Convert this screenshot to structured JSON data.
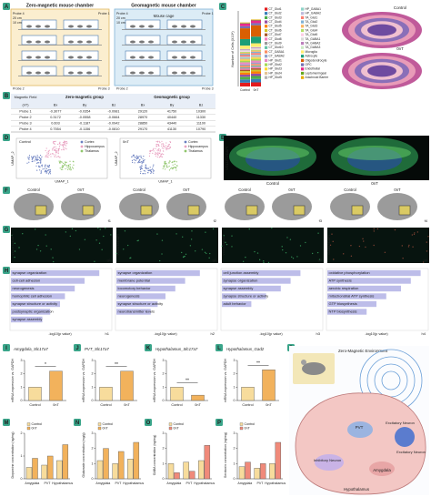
{
  "letters": [
    "A",
    "B",
    "C",
    "D",
    "E",
    "F",
    "G",
    "H",
    "I",
    "J",
    "K",
    "L",
    "M",
    "N",
    "O",
    "P",
    "Q"
  ],
  "a": {
    "left_title": "Zero-magnetic mouse chamber",
    "right_title": "Geomagnetic mouse chamber",
    "cage": "Mouse cage",
    "dims": [
      "20 cm",
      "10 cm",
      "20 cm",
      "10 cm"
    ],
    "probes": [
      "Probe 1",
      "Probe 2",
      "Probe 3",
      "Probe 4",
      "Probe 1",
      "Probe 2",
      "Probe 3",
      "Probe 4"
    ]
  },
  "b": {
    "header": [
      "Magnetic Field",
      "Zero-magnetic group",
      "Geomagnetic group"
    ],
    "sub": [
      "(nT)",
      "Bx",
      "By",
      "Bz",
      "Bx",
      "By",
      "Bz"
    ],
    "rows": [
      [
        "Probe 1",
        "-0.3077",
        "-0.0354",
        "-0.0981",
        "29120",
        "41750",
        "10300"
      ],
      [
        "Probe 2",
        "0.3172",
        "-0.0558",
        "-0.0664",
        "28970",
        "40440",
        "11330"
      ],
      [
        "Probe 3",
        "0.603",
        "-0.1187",
        "-0.0942",
        "28850",
        "43440",
        "11100"
      ],
      [
        "Probe 4",
        "0.7554",
        "-0.1156",
        "-0.0810",
        "29170",
        "41130",
        "10790"
      ]
    ]
  },
  "c": {
    "ylabel": "Number of Cells (X10⁴)",
    "categories": [
      "Control",
      "0nT"
    ],
    "ylim": [
      0,
      7
    ],
    "brains": [
      "Control",
      "0nT"
    ],
    "series": [
      {
        "name": "CT_Glut1",
        "color": "#e41a1c",
        "values": [
          0.35,
          0.38
        ]
      },
      {
        "name": "CT_Glut2",
        "color": "#377eb8",
        "values": [
          0.3,
          0.32
        ]
      },
      {
        "name": "CT_Glut3",
        "color": "#4daf4a",
        "values": [
          0.25,
          0.27
        ]
      },
      {
        "name": "CT_Glut4",
        "color": "#984ea3",
        "values": [
          0.2,
          0.22
        ]
      },
      {
        "name": "CT_Glut5",
        "color": "#ff7f00",
        "values": [
          0.18,
          0.2
        ]
      },
      {
        "name": "CT_Glut6",
        "color": "#d4c42a",
        "values": [
          0.15,
          0.16
        ]
      },
      {
        "name": "CT_Glut7",
        "color": "#a65628",
        "values": [
          0.12,
          0.13
        ]
      },
      {
        "name": "CT_Glut8",
        "color": "#f781bf",
        "values": [
          0.1,
          0.11
        ]
      },
      {
        "name": "CT_Glut9",
        "color": "#999999",
        "values": [
          0.08,
          0.09
        ]
      },
      {
        "name": "CT_Glut10",
        "color": "#66c2a5",
        "values": [
          0.06,
          0.07
        ]
      },
      {
        "name": "CT_GABA1",
        "color": "#fc8d62",
        "values": [
          0.15,
          0.14
        ]
      },
      {
        "name": "CT_GABA2",
        "color": "#8da0cb",
        "values": [
          0.1,
          0.1
        ]
      },
      {
        "name": "HP_Glut1",
        "color": "#e78ac3",
        "values": [
          0.2,
          0.21
        ]
      },
      {
        "name": "HP_Glut2",
        "color": "#a6d854",
        "values": [
          0.15,
          0.16
        ]
      },
      {
        "name": "HP_Glut3",
        "color": "#ffd92f",
        "values": [
          0.1,
          0.11
        ]
      },
      {
        "name": "HP_Glut4",
        "color": "#e5c494",
        "values": [
          0.08,
          0.08
        ]
      },
      {
        "name": "HP_Glut5",
        "color": "#b3b3b3",
        "values": [
          0.06,
          0.06
        ]
      },
      {
        "name": "HP_GABA1",
        "color": "#8dd3c7",
        "values": [
          0.08,
          0.08
        ]
      },
      {
        "name": "HP_GABA2",
        "color": "#bebada",
        "values": [
          0.05,
          0.05
        ]
      },
      {
        "name": "TA_Glut1",
        "color": "#fb8072",
        "values": [
          0.15,
          0.16
        ]
      },
      {
        "name": "TA_Glut2",
        "color": "#80b1d3",
        "values": [
          0.12,
          0.12
        ]
      },
      {
        "name": "TA_Glut3",
        "color": "#fdb462",
        "values": [
          0.1,
          0.1
        ]
      },
      {
        "name": "TA_Glut4",
        "color": "#b3de69",
        "values": [
          0.08,
          0.08
        ]
      },
      {
        "name": "TA_Glut5",
        "color": "#fccde5",
        "values": [
          0.06,
          0.06
        ]
      },
      {
        "name": "TA_GABA1",
        "color": "#d9d9d9",
        "values": [
          0.1,
          0.1
        ]
      },
      {
        "name": "TA_GABA2",
        "color": "#bc80bd",
        "values": [
          0.07,
          0.07
        ]
      },
      {
        "name": "TA_GABA3",
        "color": "#ccebc5",
        "values": [
          0.05,
          0.05
        ]
      },
      {
        "name": "Microglia",
        "color": "#ffed6f",
        "values": [
          0.3,
          0.32
        ]
      },
      {
        "name": "Astrocyte",
        "color": "#1b9e77",
        "values": [
          0.6,
          0.62
        ]
      },
      {
        "name": "Oligodendrocyte",
        "color": "#d95f02",
        "values": [
          1.0,
          1.05
        ]
      },
      {
        "name": "OPC",
        "color": "#7570b3",
        "values": [
          0.2,
          0.2
        ]
      },
      {
        "name": "Endothelial",
        "color": "#e7298a",
        "values": [
          0.25,
          0.25
        ]
      },
      {
        "name": "Leptomeningeal",
        "color": "#66a61e",
        "values": [
          0.05,
          0.05
        ]
      },
      {
        "name": "Arachnoid Barrier",
        "color": "#e6ab02",
        "values": [
          0.04,
          0.04
        ]
      }
    ]
  },
  "d": {
    "titles": [
      "Control",
      "0nT"
    ],
    "legend": [
      "Cortex",
      "Hippocampus",
      "Thalamus"
    ],
    "colors": [
      "#6a7fc0",
      "#e8a0c0",
      "#8fc56b"
    ],
    "xlabel": "UMAP_1",
    "ylabel": "UMAP_2"
  },
  "e": {
    "titles": [
      "Control",
      "0nT"
    ],
    "stain": "VGLUT2/DAPI"
  },
  "f": [
    {
      "titles": [
        "Control",
        "0nT"
      ],
      "tag": "f1"
    },
    {
      "titles": [
        "Control",
        "0nT"
      ],
      "tag": "f2"
    },
    {
      "titles": [
        "Control",
        "0nT"
      ],
      "tag": "f3"
    },
    {
      "titles": [
        "Control",
        "0nT"
      ],
      "tag": "f4"
    }
  ],
  "g": {
    "stains": [
      "VGLUT2/DAPI",
      "VGLUT2/DAPI",
      "VGLUT2/DAPI",
      "GAD67/DAPI"
    ],
    "tags": [
      "g1",
      "g2",
      "g3",
      "g4"
    ]
  },
  "h": {
    "xlim": [
      0,
      10
    ],
    "panels": [
      {
        "tag": "h1",
        "xlabel": "-log10(p value)",
        "terms": [
          "synapse organization",
          "cell-cell adhesion",
          "neurogenesis",
          "homophilic cell adhesion",
          "synapse structure or activity",
          "postsynaptic organization",
          "synapse assembly"
        ],
        "values": [
          9,
          7.5,
          6.5,
          5.5,
          5,
          4,
          3.2
        ]
      },
      {
        "tag": "h2",
        "xlabel": "-log10(p value)",
        "terms": [
          "synapse organization",
          "membrane potential",
          "locomotory behavior",
          "neurogenesis",
          "synapse structure or activity",
          "neurotransmitter levels"
        ],
        "values": [
          8.5,
          7,
          6,
          5,
          4.2,
          3.5
        ]
      },
      {
        "tag": "h3",
        "xlabel": "-log10(p value)",
        "terms": [
          "cell junction assembly",
          "synapse organization",
          "synapse assembly",
          "synapse structure or activity",
          "adult behavior"
        ],
        "values": [
          8,
          7,
          6,
          4.5,
          3
        ]
      },
      {
        "tag": "h4",
        "xlabel": "-log10(p value)",
        "terms": [
          "oxidative phosphorylation",
          "ATP synthesis",
          "aerobic respiration",
          "mitochondrial ATP synthesis",
          "GTP biosynthesis",
          "NTP biosynthesis"
        ],
        "values": [
          9.5,
          8.5,
          7.5,
          6,
          5,
          4
        ]
      }
    ]
  },
  "ijkl": [
    {
      "title": "Amygdala_Slc17a7",
      "ylabel": "mRNA expression vs. GAPDH",
      "categories": [
        "Control",
        "0nT"
      ],
      "colors": [
        "#f7dc9c",
        "#f2b25c"
      ],
      "values": [
        1,
        2.2
      ],
      "sig": "*",
      "ylim": [
        0,
        3
      ],
      "yticks": [
        0,
        1,
        2,
        3
      ]
    },
    {
      "title": "PVT_Slc17a7",
      "ylabel": "mRNA expression vs. GAPDH",
      "categories": [
        "Control",
        "0nT"
      ],
      "colors": [
        "#f7dc9c",
        "#f2b25c"
      ],
      "values": [
        1,
        2.2
      ],
      "sig": "**",
      "ylim": [
        0,
        3
      ],
      "yticks": [
        0,
        1,
        2,
        3
      ]
    },
    {
      "title": "Hypothalamus_Slc17a7",
      "ylabel": "mRNA expression vs. GAPDH",
      "categories": [
        "Control",
        "0nT"
      ],
      "colors": [
        "#f7dc9c",
        "#f2b25c"
      ],
      "values": [
        1,
        0.4
      ],
      "sig": "**",
      "ylim": [
        0,
        3
      ],
      "yticks": [
        0,
        1,
        2,
        3
      ]
    },
    {
      "title": "Hypothalamus_Gad2",
      "ylabel": "mRNA expression vs. GAPDH",
      "categories": [
        "Control",
        "0nT"
      ],
      "colors": [
        "#f7dc9c",
        "#f2b25c"
      ],
      "values": [
        1,
        2.3
      ],
      "sig": "**",
      "ylim": [
        0,
        3
      ],
      "yticks": [
        0,
        1,
        2,
        3
      ]
    }
  ],
  "mnop": [
    {
      "ylabel": "Dopamine concentration (ng/mg)",
      "categories": [
        "Amygdala",
        "PVT",
        "Hypothalamus"
      ],
      "ylim": [
        0,
        2
      ],
      "yticks": [
        0,
        1,
        2
      ],
      "series": [
        {
          "name": "Control",
          "color": "#f7dc9c",
          "values": [
            0.5,
            0.6,
            0.8
          ]
        },
        {
          "name": "0nT",
          "color": "#f2b25c",
          "values": [
            0.9,
            1.0,
            1.5
          ]
        }
      ]
    },
    {
      "ylabel": "Glutamate concentration (mg/g)",
      "categories": [
        "Amygdala",
        "PVT",
        "Hypothalamus"
      ],
      "ylim": [
        0,
        3
      ],
      "yticks": [
        0,
        1,
        2,
        3
      ],
      "series": [
        {
          "name": "Control",
          "color": "#f7dc9c",
          "values": [
            1.2,
            1.0,
            1.3
          ]
        },
        {
          "name": "0nT",
          "color": "#f2b25c",
          "values": [
            2.0,
            1.8,
            2.4
          ]
        }
      ]
    },
    {
      "ylabel": "GABA concentration (ng/mg)",
      "categories": [
        "Amygdala",
        "PVT",
        "Hypothalamus"
      ],
      "ylim": [
        0,
        3
      ],
      "yticks": [
        0,
        1,
        2,
        3
      ],
      "series": [
        {
          "name": "Control",
          "color": "#f7dc9c",
          "values": [
            1.0,
            1.1,
            1.2
          ]
        },
        {
          "name": "0nT",
          "color": "#f08a7a",
          "values": [
            0.4,
            0.5,
            2.2
          ]
        }
      ]
    },
    {
      "ylabel": "Serotonin concentration (ng/mg)",
      "categories": [
        "Amygdala",
        "PVT",
        "Hypothalamus"
      ],
      "ylim": [
        0,
        3
      ],
      "yticks": [
        0,
        1,
        2,
        3
      ],
      "series": [
        {
          "name": "Control",
          "color": "#f7dc9c",
          "values": [
            0.8,
            0.7,
            1.0
          ]
        },
        {
          "name": "0nT",
          "color": "#f08a7a",
          "values": [
            1.1,
            1.0,
            2.4
          ]
        }
      ]
    }
  ],
  "q": {
    "title": "Zero-Magnetic Environment",
    "labels": [
      "PVT",
      "Excitatory Neuron",
      "Inhibitory Neuron",
      "Amygdala",
      "Hypothalamus",
      "Excitatory Neuron"
    ]
  }
}
